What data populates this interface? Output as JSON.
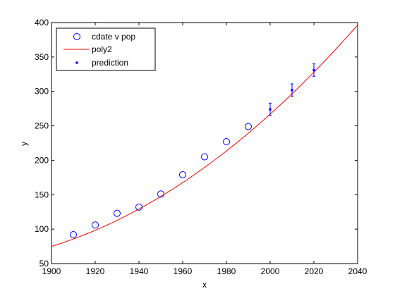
{
  "chart_data": {
    "type": "scatter",
    "xlabel": "x",
    "ylabel": "y",
    "xlim": [
      1900,
      2040
    ],
    "ylim": [
      50,
      400
    ],
    "xticks": [
      1900,
      1920,
      1940,
      1960,
      1980,
      2000,
      2020,
      2040
    ],
    "yticks": [
      50,
      100,
      150,
      200,
      250,
      300,
      350,
      400
    ],
    "grid": false,
    "legend_position": "top-left",
    "series": [
      {
        "name": "cdate v pop",
        "kind": "scatter-open-circle",
        "color": "#0000ff",
        "x": [
          1910,
          1920,
          1930,
          1940,
          1950,
          1960,
          1970,
          1980,
          1990
        ],
        "y": [
          92,
          106,
          123,
          132,
          151,
          179,
          205,
          227,
          249
        ]
      },
      {
        "name": "poly2",
        "kind": "line",
        "color": "#ff0000",
        "coefficients_ascending": [
          75,
          0.98,
          0.0094
        ],
        "x_origin": 1900
      },
      {
        "name": "prediction",
        "kind": "point-with-errorbar",
        "color": "#0000ff",
        "x": [
          2000,
          2010,
          2020
        ],
        "y": [
          274,
          302,
          331
        ],
        "err": [
          9,
          9,
          9
        ]
      }
    ]
  }
}
